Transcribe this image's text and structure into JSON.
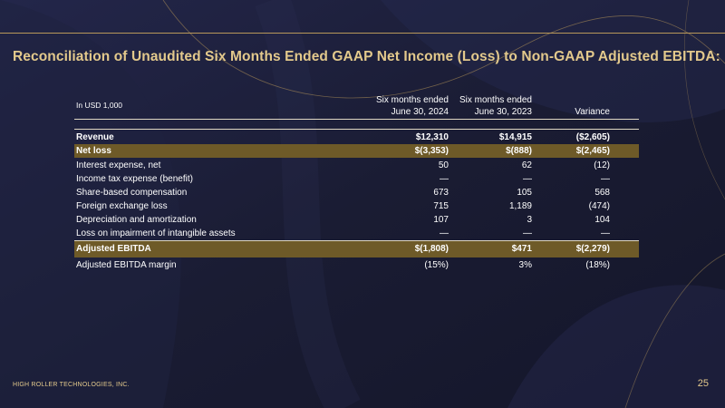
{
  "slide": {
    "title": "Reconciliation of Unaudited Six Months Ended GAAP Net Income (Loss) to Non-GAAP Adjusted EBITDA:",
    "unit_label": "In USD 1,000",
    "footer_company": "HIGH ROLLER TECHNOLOGIES, INC.",
    "page_number": "25",
    "accent_color": "#e3c98c",
    "highlight_color": "#6e5a28"
  },
  "table": {
    "columns": [
      {
        "line1": "Six months ended",
        "line2": "June 30, 2024"
      },
      {
        "line1": "Six months ended",
        "line2": "June 30, 2023"
      },
      {
        "line1": "",
        "line2": "Variance"
      }
    ],
    "rows": [
      {
        "label": "Revenue",
        "v1": "$12,310",
        "v2": "$14,915",
        "v3": "($2,605)"
      },
      {
        "label": "Net loss",
        "v1": "$(3,353)",
        "v2": "$(888)",
        "v3": "$(2,465)"
      },
      {
        "label": "Interest expense, net",
        "v1": "50",
        "v2": "62",
        "v3": "(12)"
      },
      {
        "label": "Income tax expense (benefit)",
        "v1": "—",
        "v2": "—",
        "v3": "—"
      },
      {
        "label": "Share-based compensation",
        "v1": "673",
        "v2": "105",
        "v3": "568"
      },
      {
        "label": "Foreign exchange loss",
        "v1": "715",
        "v2": "1,189",
        "v3": "(474)"
      },
      {
        "label": "Depreciation and amortization",
        "v1": "107",
        "v2": "3",
        "v3": "104"
      },
      {
        "label": "Loss on impairment of intangible assets",
        "v1": "—",
        "v2": "—",
        "v3": "—"
      },
      {
        "label": "Adjusted EBITDA",
        "v1": "$(1,808)",
        "v2": "$471",
        "v3": "$(2,279)"
      },
      {
        "label": "Adjusted EBITDA margin",
        "v1": "(15%)",
        "v2": "3%",
        "v3": "(18%)"
      }
    ]
  }
}
